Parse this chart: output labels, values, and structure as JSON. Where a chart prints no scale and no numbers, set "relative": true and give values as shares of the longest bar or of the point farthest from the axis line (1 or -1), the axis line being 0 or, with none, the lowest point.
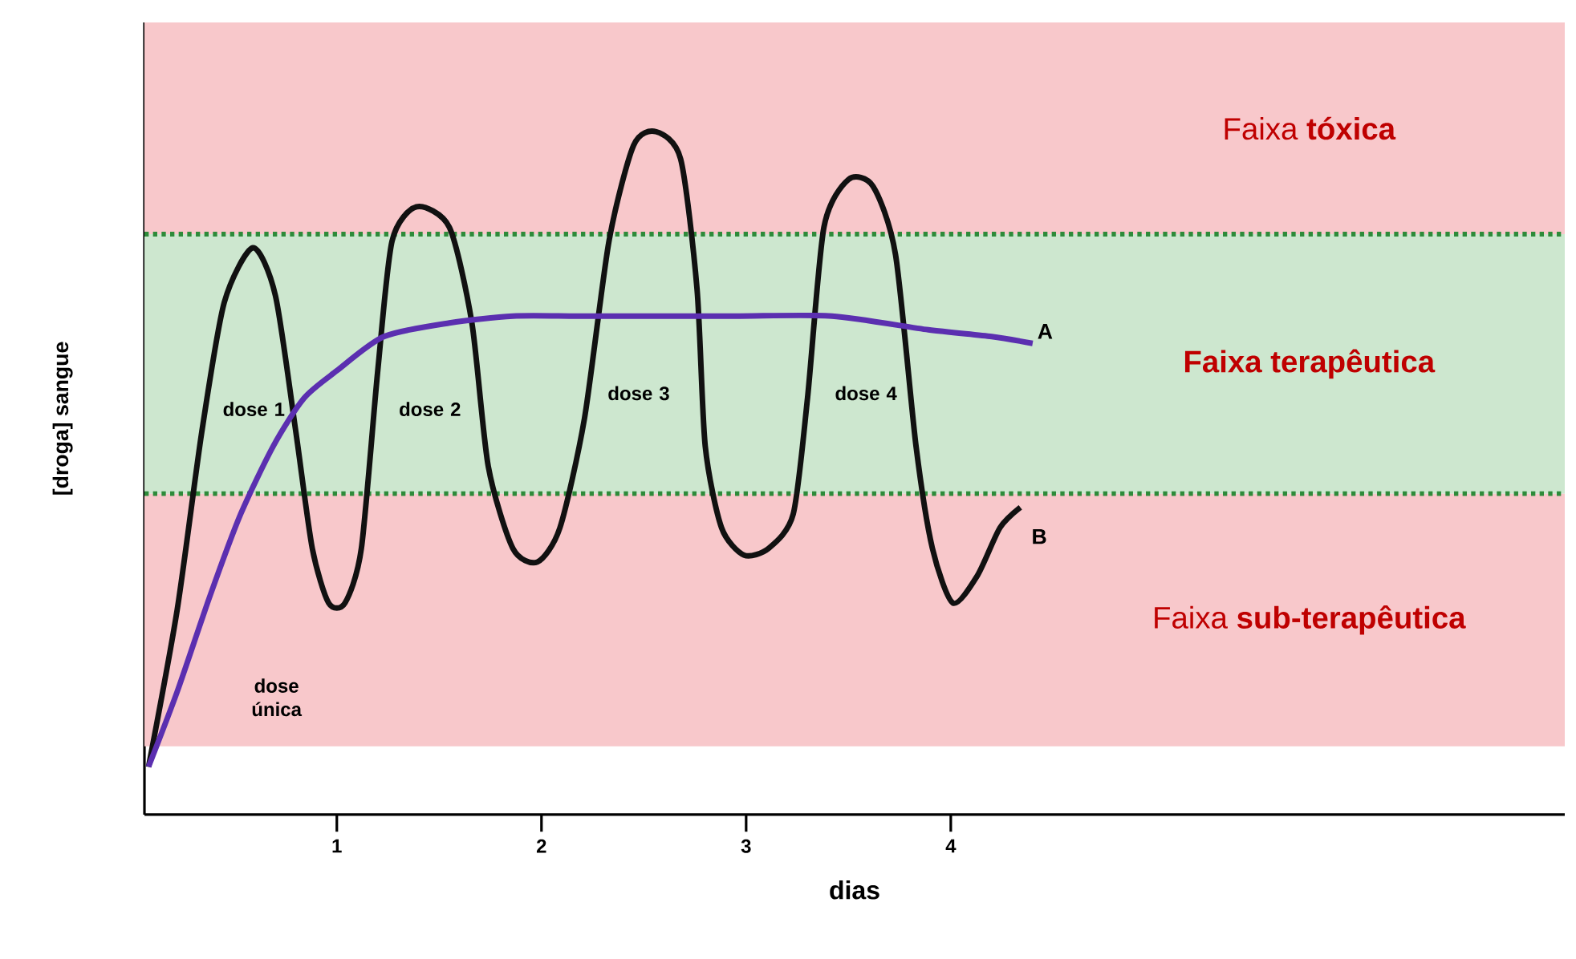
{
  "chart_data": {
    "type": "line",
    "relative": true,
    "xlabel": "dias",
    "ylabel": "[droga]  sangue",
    "xlim": [
      0.06,
      7.0
    ],
    "xticks": [
      1,
      2,
      3,
      4
    ],
    "series": [
      {
        "name": "B",
        "color": "#111111",
        "x": [
          0.08,
          0.22,
          0.34,
          0.45,
          0.59,
          0.7,
          0.8,
          0.88,
          0.96,
          1.04,
          1.12,
          1.2,
          1.27,
          1.39,
          1.55,
          1.66,
          1.74,
          1.86,
          1.98,
          2.09,
          2.21,
          2.33,
          2.45,
          2.56,
          2.68,
          2.76,
          2.8,
          2.88,
          2.99,
          3.11,
          3.23,
          3.3,
          3.38,
          3.5,
          3.62,
          3.73,
          3.83,
          3.91,
          4.01,
          4.13,
          4.24,
          4.34
        ],
        "values": [
          0.07,
          0.3,
          0.56,
          0.75,
          0.83,
          0.76,
          0.56,
          0.39,
          0.31,
          0.31,
          0.39,
          0.65,
          0.84,
          0.89,
          0.86,
          0.72,
          0.51,
          0.39,
          0.37,
          0.42,
          0.58,
          0.84,
          0.98,
          1.0,
          0.96,
          0.77,
          0.54,
          0.42,
          0.38,
          0.39,
          0.44,
          0.61,
          0.86,
          0.93,
          0.92,
          0.82,
          0.54,
          0.39,
          0.31,
          0.35,
          0.42,
          0.45
        ]
      },
      {
        "name": "A",
        "color": "#5b2fb0",
        "x": [
          0.08,
          0.22,
          0.38,
          0.53,
          0.69,
          0.84,
          1.0,
          1.23,
          1.55,
          1.86,
          2.17,
          2.48,
          2.95,
          3.42,
          3.89,
          4.2,
          4.4
        ],
        "values": [
          0.07,
          0.18,
          0.32,
          0.44,
          0.54,
          0.61,
          0.65,
          0.7,
          0.72,
          0.73,
          0.73,
          0.73,
          0.73,
          0.73,
          0.71,
          0.7,
          0.69
        ]
      }
    ],
    "bands": [
      {
        "axis": "y",
        "from": 0.85,
        "to": 1.16,
        "label": "Faixa **tóxica**",
        "color": "#f8c8cb"
      },
      {
        "axis": "y",
        "from": 0.47,
        "to": 0.85,
        "label": "**Faixa terapêutica**",
        "color": "#cde7cf"
      },
      {
        "axis": "y",
        "from": 0.1,
        "to": 0.47,
        "label": "Faixa **sub-terapêutica**",
        "color": "#f8c8cb"
      }
    ],
    "ref_lines": [
      {
        "axis": "y",
        "value": 0.85,
        "color": "#2e8b3a",
        "line_style": "dotted"
      },
      {
        "axis": "y",
        "value": 0.47,
        "color": "#2e8b3a",
        "line_style": "dotted"
      }
    ],
    "annotations": [
      "dose 1",
      "dose 2",
      "dose 3",
      "dose 4",
      "dose única"
    ],
    "grid": false,
    "line_style": "solid",
    "marker": "none"
  }
}
